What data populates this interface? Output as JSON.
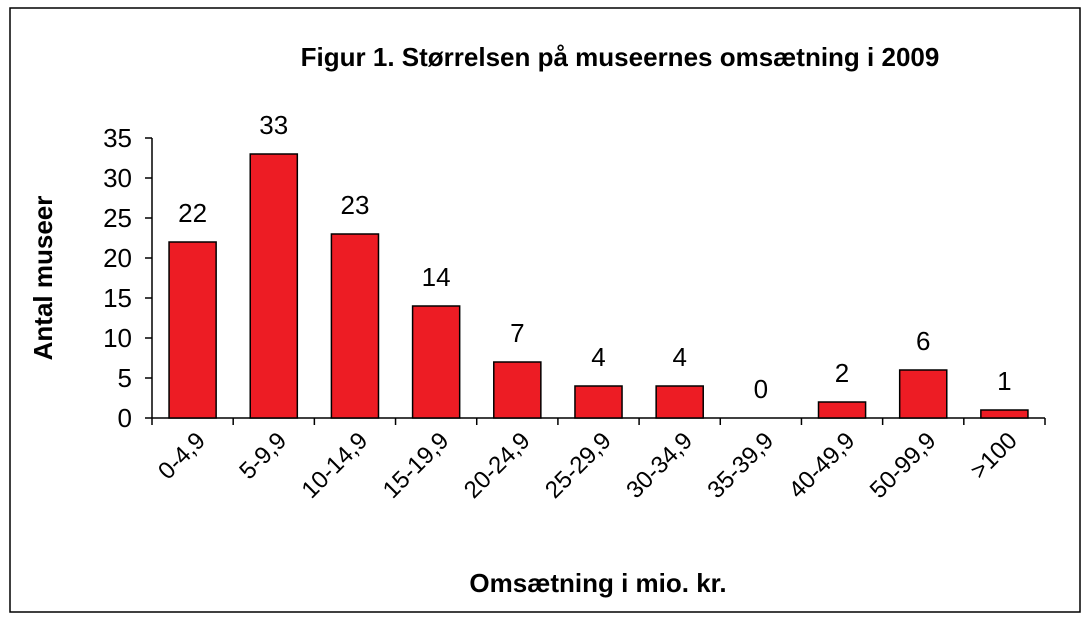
{
  "chart_data": {
    "type": "bar",
    "title": "Figur 1. Størrelsen på museernes omsætning i 2009",
    "x_label": "Omsætning i mio. kr.",
    "y_label": "Antal museer",
    "categories": [
      "0-4,9",
      "5-9,9",
      "10-14,9",
      "15-19,9",
      "20-24,9",
      "25-29,9",
      "30-34,9",
      "35-39,9",
      "40-49,9",
      "50-99,9",
      ">100"
    ],
    "values": [
      22,
      33,
      23,
      14,
      7,
      4,
      4,
      0,
      2,
      6,
      1
    ],
    "color": "#ed1c24",
    "ylim": [
      0,
      35
    ],
    "yticks": [
      0,
      5,
      10,
      15,
      20,
      25,
      30,
      35
    ],
    "grid": false
  }
}
